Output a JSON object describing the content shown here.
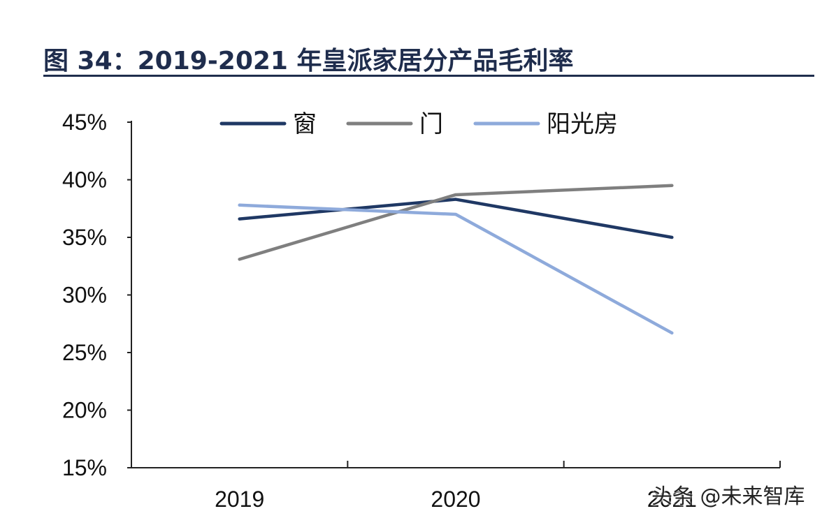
{
  "title": "图 34：2019-2021 年皇派家居分产品毛利率",
  "watermark": "头条 @未来智库",
  "chart_data": {
    "type": "line",
    "categories": [
      "2019",
      "2020",
      "2021"
    ],
    "series": [
      {
        "name": "窗",
        "color": "#1f3864",
        "values": [
          36.6,
          38.3,
          35.0
        ]
      },
      {
        "name": "门",
        "color": "#7f7f7f",
        "values": [
          33.1,
          38.7,
          39.5
        ]
      },
      {
        "name": "阳光房",
        "color": "#8eaadb",
        "values": [
          37.8,
          37.0,
          26.7
        ]
      }
    ],
    "yticks": [
      "15%",
      "20%",
      "25%",
      "30%",
      "35%",
      "40%",
      "45%"
    ],
    "ylim": [
      15,
      45
    ],
    "grid": false,
    "legend": "top"
  }
}
